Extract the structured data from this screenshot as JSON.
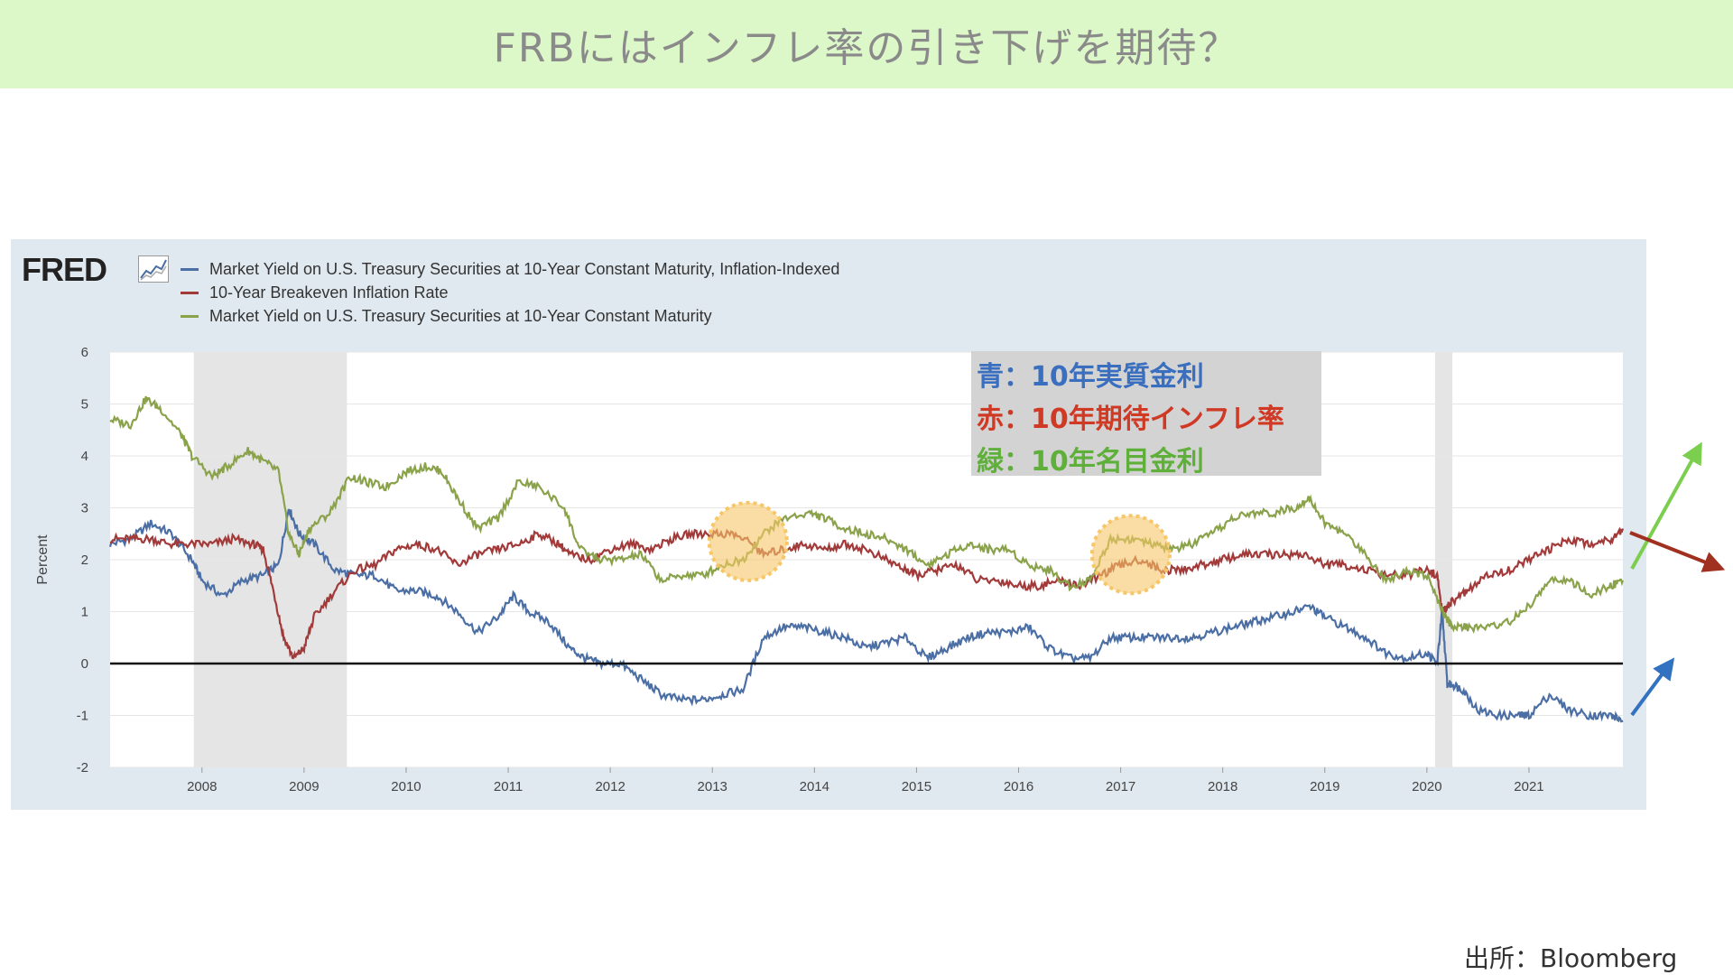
{
  "page": {
    "title": "FRBにはインフレ率の引き下げを期待？",
    "source": "出所：Bloomberg",
    "logo": "FRED"
  },
  "notes": [
    {
      "text": "青：10年実質金利",
      "color": "#3a6fbf"
    },
    {
      "text": "赤：10年期待インフレ率",
      "color": "#d03a25"
    },
    {
      "text": "緑：10年名目金利",
      "color": "#5fb03a"
    }
  ],
  "colors": {
    "blue": "#4b6fa5",
    "red": "#a23a3a",
    "green": "#8aa24a",
    "title_bg": "#dcf8c8",
    "panel_bg": "#e1e9f0",
    "recession": "#e5e5e5",
    "highlight": "#f6c667"
  },
  "chart_data": {
    "type": "line",
    "ylabel": "Percent",
    "ylim": [
      -2,
      6
    ],
    "xlim": [
      2007.1,
      2021.92
    ],
    "yticks": [
      6,
      5,
      4,
      3,
      2,
      1,
      0,
      -1,
      -2
    ],
    "xticks": [
      2008,
      2009,
      2010,
      2011,
      2012,
      2013,
      2014,
      2015,
      2016,
      2017,
      2018,
      2019,
      2020,
      2021
    ],
    "grid": true,
    "legend": "top-left",
    "recessions": [
      [
        2007.92,
        2009.42
      ],
      [
        2020.08,
        2020.25
      ]
    ],
    "highlights": [
      [
        2013.35,
        2.35
      ],
      [
        2017.1,
        2.1
      ]
    ],
    "zero_line": 0,
    "series": [
      {
        "name": "Market Yield on U.S. Treasury Securities at 10-Year Constant Maturity, Inflation-Indexed",
        "color": "#4b6fa5",
        "x": [
          2007.1,
          2007.3,
          2007.5,
          2007.7,
          2007.9,
          2008.0,
          2008.2,
          2008.4,
          2008.6,
          2008.75,
          2008.85,
          2008.95,
          2009.1,
          2009.3,
          2009.5,
          2009.7,
          2009.9,
          2010.1,
          2010.3,
          2010.5,
          2010.7,
          2010.9,
          2011.05,
          2011.2,
          2011.4,
          2011.6,
          2011.75,
          2011.9,
          2012.1,
          2012.3,
          2012.5,
          2012.7,
          2012.9,
          2013.1,
          2013.3,
          2013.5,
          2013.7,
          2013.9,
          2014.1,
          2014.3,
          2014.5,
          2014.7,
          2014.9,
          2015.1,
          2015.3,
          2015.5,
          2015.7,
          2015.9,
          2016.1,
          2016.3,
          2016.5,
          2016.7,
          2016.9,
          2017.1,
          2017.3,
          2017.5,
          2017.7,
          2017.9,
          2018.1,
          2018.3,
          2018.5,
          2018.7,
          2018.85,
          2019.0,
          2019.2,
          2019.4,
          2019.6,
          2019.8,
          2020.0,
          2020.1,
          2020.15,
          2020.2,
          2020.25,
          2020.35,
          2020.5,
          2020.7,
          2020.9,
          2021.0,
          2021.2,
          2021.4,
          2021.6,
          2021.8,
          2021.92
        ],
        "values": [
          2.3,
          2.4,
          2.7,
          2.5,
          2.0,
          1.6,
          1.3,
          1.6,
          1.7,
          1.9,
          3.0,
          2.5,
          2.3,
          1.8,
          1.7,
          1.7,
          1.4,
          1.4,
          1.3,
          1.0,
          0.6,
          0.9,
          1.3,
          1.0,
          0.8,
          0.3,
          0.1,
          0.0,
          0.0,
          -0.3,
          -0.6,
          -0.7,
          -0.7,
          -0.6,
          -0.5,
          0.5,
          0.7,
          0.7,
          0.6,
          0.5,
          0.3,
          0.4,
          0.5,
          0.1,
          0.3,
          0.5,
          0.6,
          0.6,
          0.7,
          0.3,
          0.1,
          0.1,
          0.5,
          0.5,
          0.5,
          0.5,
          0.5,
          0.6,
          0.7,
          0.8,
          0.9,
          1.0,
          1.1,
          0.9,
          0.7,
          0.5,
          0.2,
          0.1,
          0.2,
          0.0,
          1.0,
          -0.4,
          -0.4,
          -0.5,
          -0.9,
          -1.0,
          -1.0,
          -1.0,
          -0.6,
          -0.9,
          -1.0,
          -1.0,
          -1.1
        ]
      },
      {
        "name": "10-Year Breakeven Inflation Rate",
        "color": "#a23a3a",
        "x": [
          2007.1,
          2007.3,
          2007.5,
          2007.7,
          2007.9,
          2008.1,
          2008.3,
          2008.5,
          2008.6,
          2008.7,
          2008.8,
          2008.9,
          2009.0,
          2009.1,
          2009.3,
          2009.5,
          2009.7,
          2009.9,
          2010.1,
          2010.3,
          2010.5,
          2010.7,
          2010.9,
          2011.1,
          2011.3,
          2011.5,
          2011.6,
          2011.8,
          2012.0,
          2012.2,
          2012.4,
          2012.6,
          2012.8,
          2013.0,
          2013.2,
          2013.4,
          2013.5,
          2013.7,
          2013.9,
          2014.1,
          2014.3,
          2014.5,
          2014.7,
          2014.9,
          2015.0,
          2015.2,
          2015.4,
          2015.6,
          2015.8,
          2016.0,
          2016.2,
          2016.4,
          2016.6,
          2016.8,
          2017.0,
          2017.2,
          2017.4,
          2017.6,
          2017.8,
          2018.0,
          2018.2,
          2018.4,
          2018.6,
          2018.8,
          2019.0,
          2019.2,
          2019.4,
          2019.6,
          2019.8,
          2020.0,
          2020.1,
          2020.15,
          2020.2,
          2020.25,
          2020.4,
          2020.6,
          2020.8,
          2021.0,
          2021.2,
          2021.4,
          2021.6,
          2021.8,
          2021.92
        ],
        "values": [
          2.4,
          2.4,
          2.4,
          2.3,
          2.3,
          2.3,
          2.4,
          2.3,
          2.2,
          1.4,
          0.5,
          0.1,
          0.3,
          0.9,
          1.4,
          1.8,
          1.9,
          2.2,
          2.3,
          2.2,
          1.9,
          2.1,
          2.2,
          2.3,
          2.5,
          2.3,
          2.1,
          2.0,
          2.2,
          2.3,
          2.2,
          2.4,
          2.5,
          2.5,
          2.5,
          2.3,
          2.1,
          2.2,
          2.3,
          2.2,
          2.3,
          2.2,
          2.0,
          1.8,
          1.7,
          1.8,
          1.9,
          1.6,
          1.6,
          1.5,
          1.5,
          1.6,
          1.5,
          1.7,
          1.9,
          2.0,
          1.8,
          1.8,
          1.9,
          2.0,
          2.1,
          2.1,
          2.1,
          2.1,
          1.9,
          1.9,
          1.8,
          1.7,
          1.7,
          1.8,
          1.7,
          1.0,
          1.1,
          1.2,
          1.4,
          1.7,
          1.8,
          2.0,
          2.2,
          2.4,
          2.3,
          2.4,
          2.6
        ]
      },
      {
        "name": "Market Yield on U.S. Treasury Securities at 10-Year Constant Maturity",
        "color": "#8aa24a",
        "x": [
          2007.1,
          2007.3,
          2007.45,
          2007.6,
          2007.8,
          2007.9,
          2008.1,
          2008.25,
          2008.45,
          2008.6,
          2008.75,
          2008.85,
          2008.95,
          2009.05,
          2009.25,
          2009.45,
          2009.6,
          2009.8,
          2010.0,
          2010.2,
          2010.35,
          2010.5,
          2010.7,
          2010.9,
          2011.1,
          2011.3,
          2011.55,
          2011.7,
          2011.9,
          2012.1,
          2012.3,
          2012.5,
          2012.7,
          2012.9,
          2013.1,
          2013.3,
          2013.5,
          2013.7,
          2013.95,
          2014.1,
          2014.3,
          2014.5,
          2014.7,
          2014.9,
          2015.1,
          2015.3,
          2015.5,
          2015.7,
          2015.9,
          2016.1,
          2016.3,
          2016.5,
          2016.7,
          2016.9,
          2017.1,
          2017.3,
          2017.5,
          2017.7,
          2017.9,
          2018.1,
          2018.3,
          2018.5,
          2018.7,
          2018.85,
          2019.0,
          2019.2,
          2019.4,
          2019.6,
          2019.8,
          2020.0,
          2020.15,
          2020.25,
          2020.4,
          2020.6,
          2020.8,
          2021.0,
          2021.2,
          2021.4,
          2021.6,
          2021.8,
          2021.92
        ],
        "values": [
          4.7,
          4.6,
          5.1,
          4.9,
          4.4,
          4.0,
          3.6,
          3.8,
          4.1,
          3.9,
          3.7,
          2.5,
          2.1,
          2.6,
          2.9,
          3.6,
          3.5,
          3.4,
          3.7,
          3.8,
          3.7,
          3.2,
          2.6,
          2.8,
          3.5,
          3.4,
          3.0,
          2.2,
          2.0,
          2.0,
          2.1,
          1.6,
          1.7,
          1.7,
          1.9,
          2.0,
          2.5,
          2.8,
          2.9,
          2.8,
          2.6,
          2.5,
          2.4,
          2.2,
          1.9,
          2.1,
          2.3,
          2.2,
          2.2,
          1.9,
          1.8,
          1.5,
          1.6,
          2.4,
          2.4,
          2.3,
          2.2,
          2.3,
          2.5,
          2.8,
          2.9,
          2.9,
          3.0,
          3.2,
          2.7,
          2.5,
          2.1,
          1.6,
          1.8,
          1.7,
          1.0,
          0.7,
          0.7,
          0.7,
          0.8,
          1.1,
          1.6,
          1.6,
          1.3,
          1.5,
          1.6
        ]
      }
    ]
  }
}
